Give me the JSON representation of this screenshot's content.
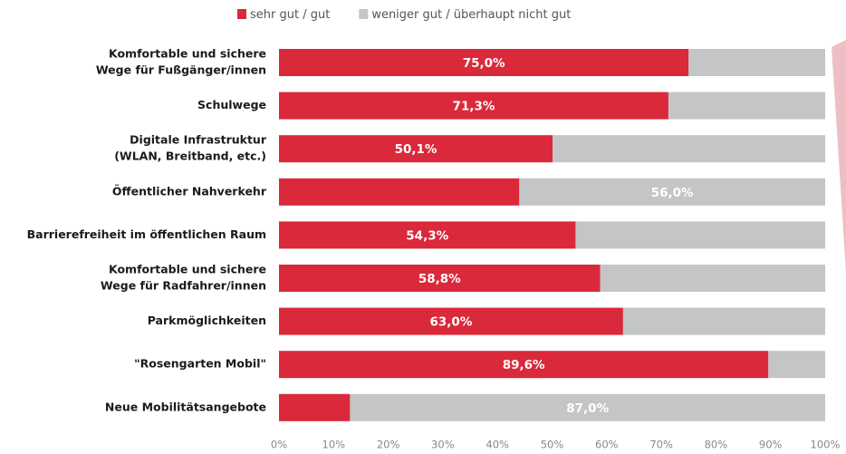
{
  "chart_data": {
    "type": "stacked-barh",
    "categories": [
      [
        "Komfortable und sichere",
        "Wege für Fußgänger/innen"
      ],
      [
        "Schulwege"
      ],
      [
        "Digitale Infrastruktur",
        "(WLAN, Breitband, etc.)"
      ],
      [
        "Öffentlicher Nahverkehr"
      ],
      [
        "Barrierefreiheit im öffentlichen Raum"
      ],
      [
        "Komfortable und sichere",
        "Wege für Radfahrer/innen"
      ],
      [
        "Parkmöglichkeiten"
      ],
      [
        "\"Rosengarten Mobil\""
      ],
      [
        "Neue Mobilitätsangebote"
      ]
    ],
    "series": [
      {
        "name": "sehr gut / gut",
        "color": "#d9293a",
        "values": [
          75.0,
          71.3,
          50.1,
          44.0,
          54.3,
          58.8,
          63.0,
          89.6,
          13.0
        ],
        "value_labels": [
          "75,0%",
          "71,3%",
          "50,1%",
          null,
          "54,3%",
          "58,8%",
          "63,0%",
          "89,6%",
          null
        ]
      },
      {
        "name": "weniger gut / überhaupt nicht gut",
        "color": "#c3c5c6",
        "values": [
          25.0,
          28.7,
          49.9,
          56.0,
          45.7,
          41.2,
          37.0,
          10.4,
          87.0
        ],
        "value_labels": [
          null,
          null,
          null,
          "56,0%",
          null,
          null,
          null,
          null,
          "87,0%"
        ]
      }
    ],
    "xlim": [
      0,
      100
    ],
    "xticks": [
      {
        "value": 0,
        "label": "0%"
      },
      {
        "value": 10,
        "label": "10%"
      },
      {
        "value": 20,
        "label": "20%"
      },
      {
        "value": 30,
        "label": "30%"
      },
      {
        "value": 40,
        "label": "40%"
      },
      {
        "value": 50,
        "label": "50%"
      },
      {
        "value": 60,
        "label": "60%"
      },
      {
        "value": 70,
        "label": "70%"
      },
      {
        "value": 80,
        "label": "80%"
      },
      {
        "value": 90,
        "label": "90%"
      },
      {
        "value": 100,
        "label": "100%"
      }
    ],
    "legend": "top"
  }
}
